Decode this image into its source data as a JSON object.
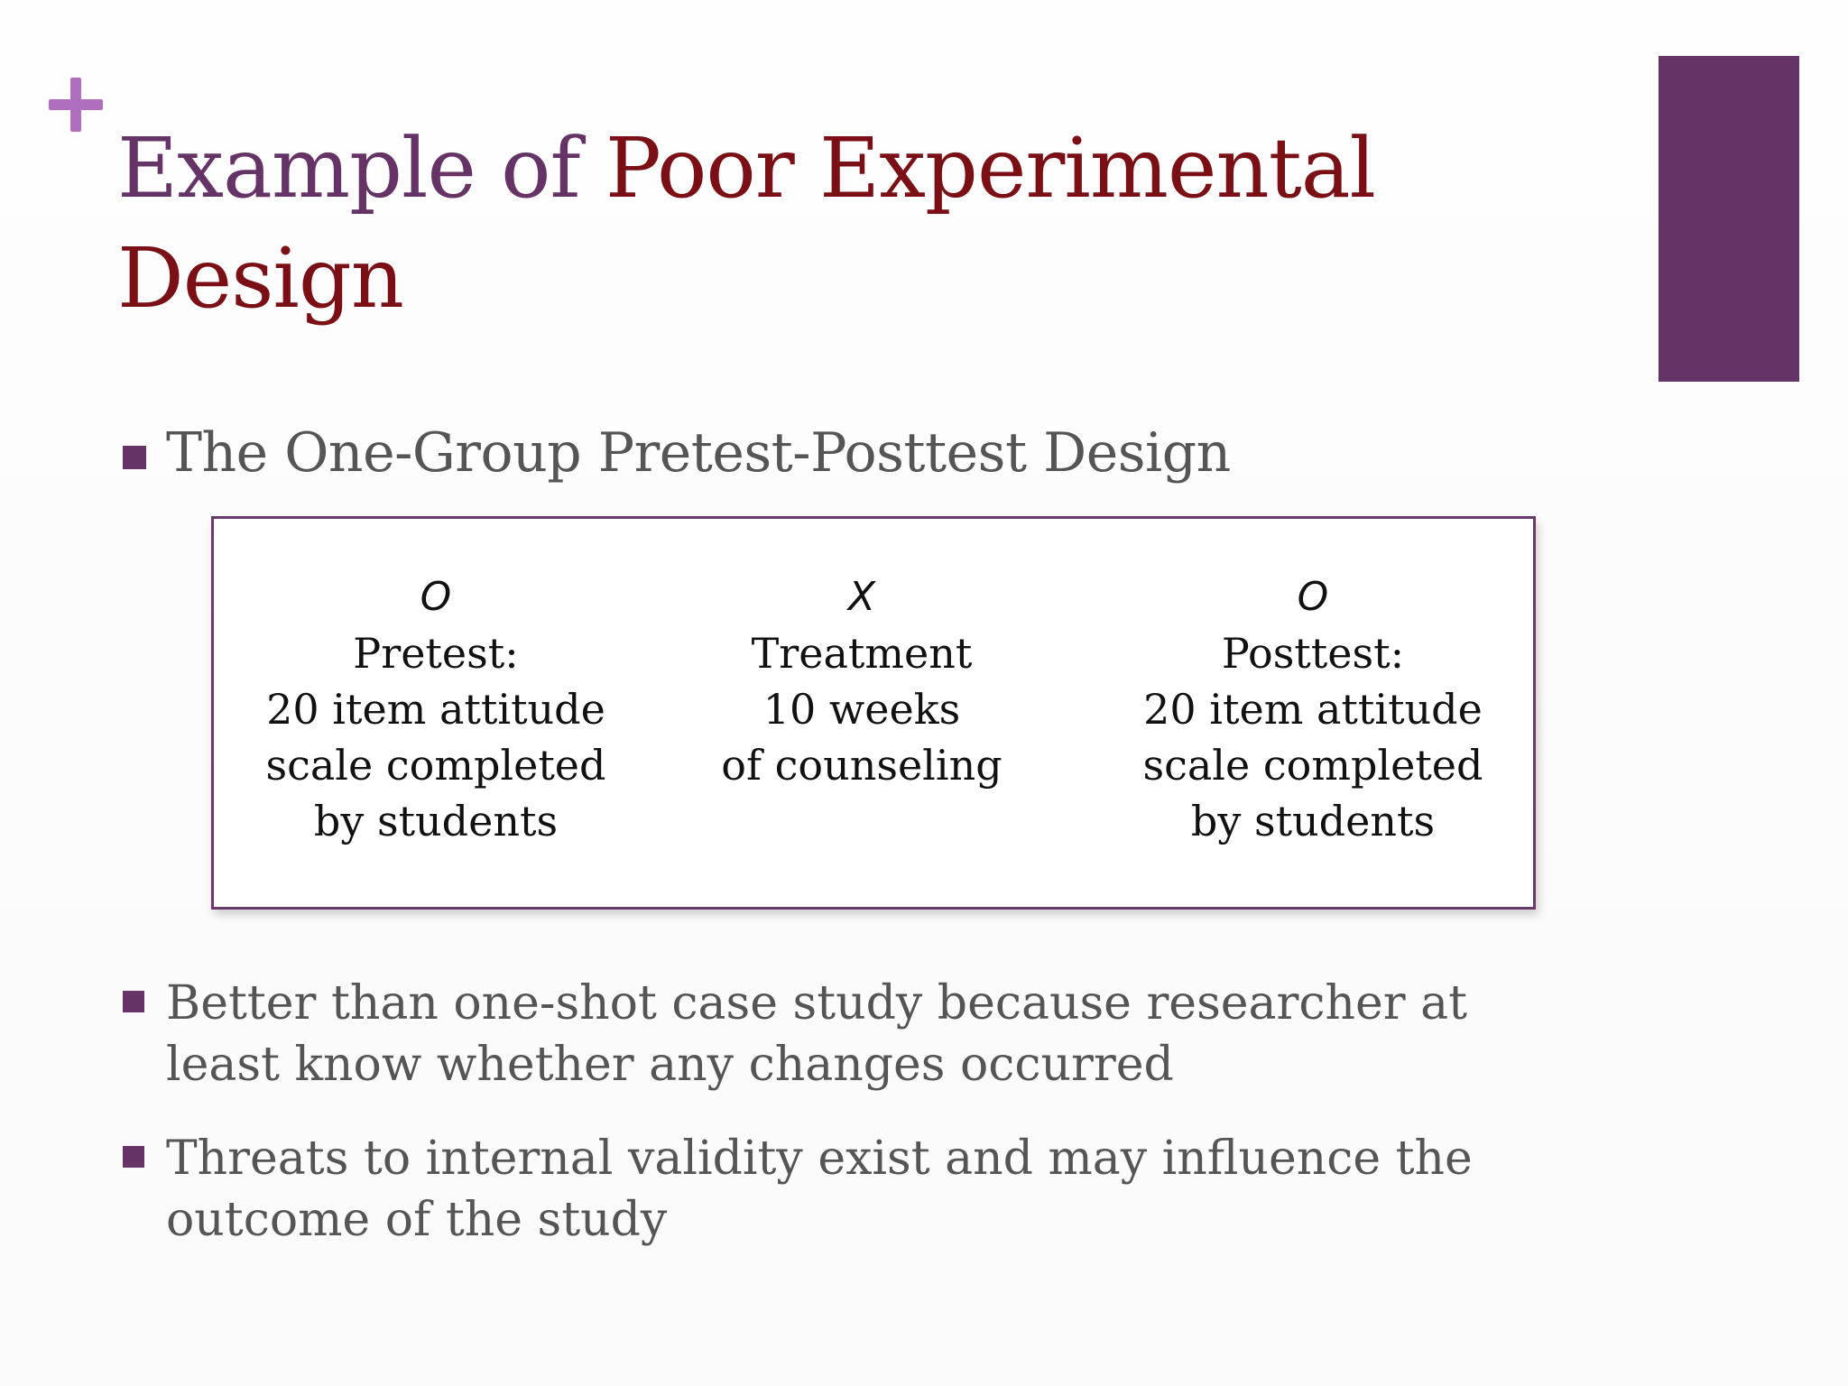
{
  "slide": {
    "title_part1": "Example of ",
    "title_part2": "Poor Experimental Design",
    "subheading": "The One-Group Pretest-Posttest Design",
    "design": [
      {
        "symbol": "O",
        "lines": [
          "Pretest:",
          "20 item attitude",
          "scale completed",
          "by students"
        ]
      },
      {
        "symbol": "X",
        "lines": [
          "Treatment",
          "10 weeks",
          "of counseling"
        ]
      },
      {
        "symbol": "O",
        "lines": [
          "Posttest:",
          "20 item attitude",
          "scale completed",
          "by students"
        ]
      }
    ],
    "bullets": [
      "Better than one-shot case study because researcher at least know whether any changes occurred",
      "Threats to internal validity exist and may influence the outcome of the study"
    ]
  },
  "colors": {
    "accent_purple": "#663366",
    "title_red": "#7a0f16",
    "plus_pink": "#b06fbe",
    "body_gray": "#555555"
  },
  "icons": {
    "corner": "plus-icon",
    "bullet": "square-bullet-icon"
  }
}
